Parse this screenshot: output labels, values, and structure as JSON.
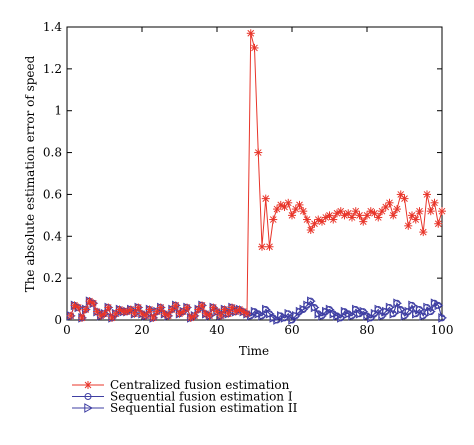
{
  "chart_data": {
    "type": "line",
    "title": "",
    "xlabel": "Time",
    "ylabel": "The absolute estimation error of speed",
    "xlim": [
      0,
      100
    ],
    "ylim": [
      0,
      1.4
    ],
    "xticks": [
      "0",
      "20",
      "40",
      "60",
      "80",
      "100"
    ],
    "yticks": [
      "0",
      "0.2",
      "0.4",
      "0.6",
      "0.8",
      "1",
      "1.2",
      "1.4"
    ],
    "grid": false,
    "legend_position": "below",
    "x": [
      1,
      2,
      3,
      4,
      5,
      6,
      7,
      8,
      9,
      10,
      11,
      12,
      13,
      14,
      15,
      16,
      17,
      18,
      19,
      20,
      21,
      22,
      23,
      24,
      25,
      26,
      27,
      28,
      29,
      30,
      31,
      32,
      33,
      34,
      35,
      36,
      37,
      38,
      39,
      40,
      41,
      42,
      43,
      44,
      45,
      46,
      47,
      48,
      49,
      50,
      51,
      52,
      53,
      54,
      55,
      56,
      57,
      58,
      59,
      60,
      61,
      62,
      63,
      64,
      65,
      66,
      67,
      68,
      69,
      70,
      71,
      72,
      73,
      74,
      75,
      76,
      77,
      78,
      79,
      80,
      81,
      82,
      83,
      84,
      85,
      86,
      87,
      88,
      89,
      90,
      91,
      92,
      93,
      94,
      95,
      96,
      97,
      98,
      99,
      100
    ],
    "series": [
      {
        "name": "Centralized fusion estimation",
        "color": "#e8352a",
        "marker": "star",
        "values": [
          0.02,
          0.07,
          0.06,
          0.01,
          0.05,
          0.09,
          0.08,
          0.04,
          0.02,
          0.03,
          0.06,
          0.01,
          0.03,
          0.05,
          0.04,
          0.04,
          0.05,
          0.03,
          0.06,
          0.03,
          0.02,
          0.05,
          0.01,
          0.04,
          0.06,
          0.03,
          0.02,
          0.05,
          0.07,
          0.03,
          0.04,
          0.06,
          0.01,
          0.02,
          0.05,
          0.07,
          0.03,
          0.02,
          0.06,
          0.04,
          0.02,
          0.05,
          0.03,
          0.06,
          0.04,
          0.05,
          0.04,
          0.03,
          1.37,
          1.3,
          0.8,
          0.35,
          0.58,
          0.35,
          0.48,
          0.53,
          0.55,
          0.54,
          0.56,
          0.5,
          0.53,
          0.55,
          0.52,
          0.48,
          0.43,
          0.46,
          0.48,
          0.47,
          0.49,
          0.5,
          0.48,
          0.51,
          0.52,
          0.5,
          0.51,
          0.49,
          0.52,
          0.5,
          0.47,
          0.5,
          0.52,
          0.51,
          0.49,
          0.52,
          0.54,
          0.56,
          0.5,
          0.53,
          0.6,
          0.58,
          0.45,
          0.5,
          0.48,
          0.52,
          0.42,
          0.6,
          0.52,
          0.56,
          0.46,
          0.52
        ]
      },
      {
        "name": "Sequential fusion estimation I",
        "color": "#3f3fa3",
        "marker": "circle",
        "values": [
          0.02,
          0.07,
          0.06,
          0.01,
          0.05,
          0.09,
          0.08,
          0.04,
          0.02,
          0.03,
          0.06,
          0.01,
          0.03,
          0.05,
          0.04,
          0.04,
          0.05,
          0.03,
          0.06,
          0.03,
          0.02,
          0.05,
          0.01,
          0.04,
          0.06,
          0.03,
          0.02,
          0.05,
          0.07,
          0.03,
          0.04,
          0.06,
          0.01,
          0.02,
          0.05,
          0.07,
          0.03,
          0.02,
          0.06,
          0.04,
          0.02,
          0.05,
          0.03,
          0.06,
          0.04,
          0.05,
          0.04,
          0.03,
          0.02,
          0.04,
          0.03,
          0.02,
          0.05,
          0.03,
          0.01,
          0.0,
          0.02,
          0.01,
          0.03,
          0.0,
          0.02,
          0.04,
          0.05,
          0.07,
          0.09,
          0.06,
          0.03,
          0.02,
          0.04,
          0.05,
          0.03,
          0.02,
          0.01,
          0.04,
          0.03,
          0.02,
          0.05,
          0.03,
          0.04,
          0.02,
          0.01,
          0.03,
          0.05,
          0.02,
          0.04,
          0.06,
          0.03,
          0.08,
          0.05,
          0.02,
          0.04,
          0.07,
          0.03,
          0.05,
          0.02,
          0.06,
          0.04,
          0.08,
          0.07,
          0.01
        ]
      },
      {
        "name": "Sequential fusion estimation II",
        "color": "#3f3fa3",
        "marker": "triangle-right",
        "values": [
          0.02,
          0.07,
          0.06,
          0.01,
          0.05,
          0.09,
          0.08,
          0.04,
          0.02,
          0.03,
          0.06,
          0.01,
          0.03,
          0.05,
          0.04,
          0.04,
          0.05,
          0.03,
          0.06,
          0.03,
          0.02,
          0.05,
          0.01,
          0.04,
          0.06,
          0.03,
          0.02,
          0.05,
          0.07,
          0.03,
          0.04,
          0.06,
          0.01,
          0.02,
          0.05,
          0.07,
          0.03,
          0.02,
          0.06,
          0.04,
          0.02,
          0.05,
          0.03,
          0.06,
          0.04,
          0.05,
          0.04,
          0.03,
          0.02,
          0.04,
          0.03,
          0.02,
          0.05,
          0.03,
          0.01,
          0.0,
          0.02,
          0.01,
          0.03,
          0.0,
          0.02,
          0.04,
          0.05,
          0.07,
          0.09,
          0.06,
          0.03,
          0.02,
          0.04,
          0.05,
          0.03,
          0.02,
          0.01,
          0.04,
          0.03,
          0.02,
          0.05,
          0.03,
          0.04,
          0.02,
          0.01,
          0.03,
          0.05,
          0.02,
          0.04,
          0.06,
          0.03,
          0.08,
          0.05,
          0.02,
          0.04,
          0.07,
          0.03,
          0.05,
          0.02,
          0.06,
          0.04,
          0.08,
          0.07,
          0.01
        ]
      }
    ]
  }
}
